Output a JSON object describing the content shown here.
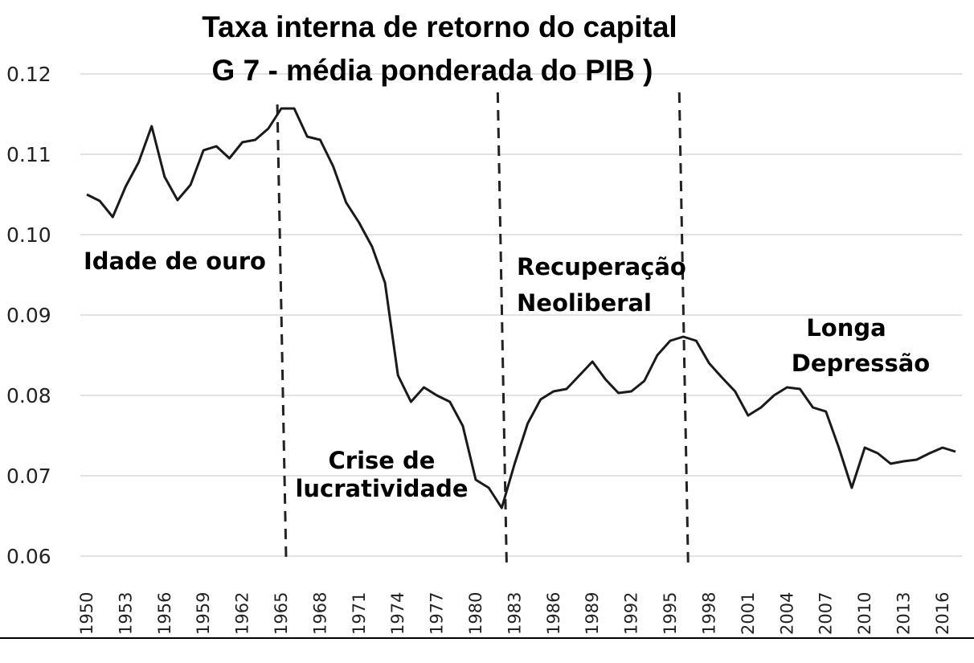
{
  "chart_data": {
    "type": "line",
    "title": "Taxa interna de retorno do capital",
    "subtitle": "G 7 - média ponderada do PIB )",
    "xlabel": "",
    "ylabel": "",
    "ylim": [
      0.06,
      0.12
    ],
    "xlim": [
      1950,
      2017
    ],
    "grid": "horizontal",
    "y_ticks": [
      "0.06",
      "0.07",
      "0.08",
      "0.09",
      "0.10",
      "0.11",
      "0.12"
    ],
    "x_ticks": [
      "1950",
      "1953",
      "1956",
      "1959",
      "1962",
      "1965",
      "1968",
      "1971",
      "1974",
      "1977",
      "1980",
      "1983",
      "1986",
      "1989",
      "1992",
      "1995",
      "1998",
      "2001",
      "2004",
      "2007",
      "2010",
      "2013",
      "2016"
    ],
    "x": [
      1950,
      1951,
      1952,
      1953,
      1954,
      1955,
      1956,
      1957,
      1958,
      1959,
      1960,
      1961,
      1962,
      1963,
      1964,
      1965,
      1966,
      1967,
      1968,
      1969,
      1970,
      1971,
      1972,
      1973,
      1974,
      1975,
      1976,
      1977,
      1978,
      1979,
      1980,
      1981,
      1982,
      1983,
      1984,
      1985,
      1986,
      1987,
      1988,
      1989,
      1990,
      1991,
      1992,
      1993,
      1994,
      1995,
      1996,
      1997,
      1998,
      1999,
      2000,
      2001,
      2002,
      2003,
      2004,
      2005,
      2006,
      2007,
      2008,
      2009,
      2010,
      2011,
      2012,
      2013,
      2014,
      2015,
      2016,
      2017
    ],
    "series": [
      {
        "values": [
          0.105,
          0.1042,
          0.1022,
          0.106,
          0.109,
          0.1135,
          0.1072,
          0.1043,
          0.1062,
          0.1105,
          0.111,
          0.1095,
          0.1115,
          0.1118,
          0.1132,
          0.1157,
          0.1157,
          0.1122,
          0.1118,
          0.1085,
          0.104,
          0.1015,
          0.0985,
          0.094,
          0.0825,
          0.0792,
          0.081,
          0.08,
          0.0792,
          0.0762,
          0.0695,
          0.0685,
          0.066,
          0.0715,
          0.0765,
          0.0795,
          0.0805,
          0.0808,
          0.0825,
          0.0842,
          0.082,
          0.0803,
          0.0805,
          0.0818,
          0.085,
          0.0868,
          0.0873,
          0.0868,
          0.084,
          0.0822,
          0.0805,
          0.0775,
          0.0785,
          0.08,
          0.081,
          0.0808,
          0.0785,
          0.078,
          0.0735,
          0.0685,
          0.0735,
          0.0728,
          0.0715,
          0.0718,
          0.072,
          0.0728,
          0.0735,
          0.073
        ]
      }
    ],
    "period_lines": [
      1965.5,
      1982.5,
      1996.5
    ],
    "annotations": [
      {
        "key": "idade",
        "lines": [
          "Idade de ouro"
        ]
      },
      {
        "key": "crise",
        "lines": [
          "Crise de",
          "lucratividade"
        ]
      },
      {
        "key": "recup",
        "lines": [
          "Recuperação",
          "Neoliberal"
        ]
      },
      {
        "key": "longa",
        "lines": [
          "Longa",
          "Depressão"
        ]
      }
    ]
  }
}
